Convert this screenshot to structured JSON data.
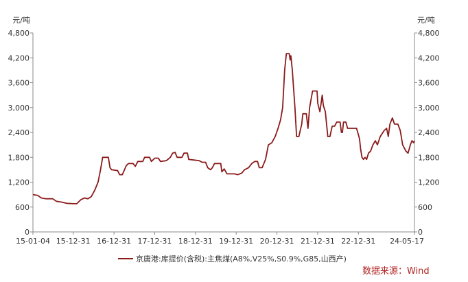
{
  "chart_data": {
    "type": "line",
    "y_unit_left": "元/吨",
    "y_unit_right": "元/吨",
    "ylim": [
      0,
      4800
    ],
    "yticks": [
      "0",
      "600",
      "1,200",
      "1,800",
      "2,400",
      "3,000",
      "3,600",
      "4,200",
      "4,800"
    ],
    "ytick_values": [
      0,
      600,
      1200,
      1800,
      2400,
      3000,
      3600,
      4200,
      4800
    ],
    "xlim": [
      "2015-01-04",
      "2024-05-17"
    ],
    "xticks": [
      "15-01-04",
      "15-12-31",
      "16-12-31",
      "17-12-31",
      "18-12-31",
      "19-12-31",
      "20-12-31",
      "21-12-31",
      "22-12-31",
      "24-05-17"
    ],
    "xtick_dates": [
      "2015-01-04",
      "2015-12-31",
      "2016-12-31",
      "2017-12-31",
      "2018-12-31",
      "2019-12-31",
      "2020-12-31",
      "2021-12-31",
      "2022-12-31",
      "2024-05-17"
    ],
    "grid": false,
    "legend_position": "bottom-center",
    "series": [
      {
        "name": "京唐港:库提价(含税):主焦煤(A8%,V25%,S0.9%,G85,山西产)",
        "color": "#8B1A1A",
        "points": [
          [
            "2015-01-04",
            900
          ],
          [
            "2015-02-15",
            880
          ],
          [
            "2015-03-20",
            820
          ],
          [
            "2015-05-01",
            800
          ],
          [
            "2015-07-01",
            800
          ],
          [
            "2015-08-01",
            740
          ],
          [
            "2015-09-15",
            720
          ],
          [
            "2015-11-01",
            690
          ],
          [
            "2015-12-31",
            680
          ],
          [
            "2016-02-01",
            680
          ],
          [
            "2016-03-10",
            780
          ],
          [
            "2016-04-10",
            820
          ],
          [
            "2016-05-10",
            800
          ],
          [
            "2016-06-10",
            850
          ],
          [
            "2016-07-10",
            1000
          ],
          [
            "2016-08-10",
            1200
          ],
          [
            "2016-09-01",
            1500
          ],
          [
            "2016-09-20",
            1800
          ],
          [
            "2016-11-10",
            1800
          ],
          [
            "2016-11-25",
            1550
          ],
          [
            "2016-12-10",
            1500
          ],
          [
            "2017-02-01",
            1480
          ],
          [
            "2017-02-20",
            1380
          ],
          [
            "2017-03-15",
            1380
          ],
          [
            "2017-04-01",
            1480
          ],
          [
            "2017-04-20",
            1600
          ],
          [
            "2017-05-10",
            1650
          ],
          [
            "2017-06-20",
            1650
          ],
          [
            "2017-07-10",
            1580
          ],
          [
            "2017-08-01",
            1700
          ],
          [
            "2017-09-15",
            1700
          ],
          [
            "2017-10-01",
            1800
          ],
          [
            "2017-11-15",
            1800
          ],
          [
            "2017-12-01",
            1700
          ],
          [
            "2018-01-01",
            1780
          ],
          [
            "2018-02-01",
            1780
          ],
          [
            "2018-02-20",
            1700
          ],
          [
            "2018-04-15",
            1720
          ],
          [
            "2018-05-20",
            1800
          ],
          [
            "2018-06-10",
            1900
          ],
          [
            "2018-07-01",
            1920
          ],
          [
            "2018-07-20",
            1800
          ],
          [
            "2018-09-01",
            1800
          ],
          [
            "2018-09-20",
            1900
          ],
          [
            "2018-10-20",
            1900
          ],
          [
            "2018-11-01",
            1750
          ],
          [
            "2019-02-01",
            1720
          ],
          [
            "2019-03-01",
            1680
          ],
          [
            "2019-04-01",
            1680
          ],
          [
            "2019-04-20",
            1550
          ],
          [
            "2019-05-15",
            1500
          ],
          [
            "2019-06-01",
            1550
          ],
          [
            "2019-06-20",
            1650
          ],
          [
            "2019-08-15",
            1650
          ],
          [
            "2019-08-25",
            1450
          ],
          [
            "2019-09-15",
            1520
          ],
          [
            "2019-10-10",
            1400
          ],
          [
            "2019-12-15",
            1400
          ],
          [
            "2020-01-15",
            1380
          ],
          [
            "2020-02-20",
            1420
          ],
          [
            "2020-03-15",
            1500
          ],
          [
            "2020-04-20",
            1550
          ],
          [
            "2020-05-20",
            1650
          ],
          [
            "2020-06-15",
            1700
          ],
          [
            "2020-07-10",
            1700
          ],
          [
            "2020-07-25",
            1550
          ],
          [
            "2020-08-20",
            1550
          ],
          [
            "2020-09-20",
            1750
          ],
          [
            "2020-10-15",
            2100
          ],
          [
            "2020-11-15",
            2150
          ],
          [
            "2020-12-15",
            2300
          ],
          [
            "2021-01-10",
            2500
          ],
          [
            "2021-02-01",
            2700
          ],
          [
            "2021-02-20",
            3000
          ],
          [
            "2021-03-10",
            3900
          ],
          [
            "2021-03-25",
            4300
          ],
          [
            "2021-04-20",
            4300
          ],
          [
            "2021-04-28",
            4150
          ],
          [
            "2021-05-05",
            4250
          ],
          [
            "2021-05-18",
            3900
          ],
          [
            "2021-06-10",
            3000
          ],
          [
            "2021-06-25",
            2300
          ],
          [
            "2021-07-15",
            2300
          ],
          [
            "2021-08-10",
            2600
          ],
          [
            "2021-08-20",
            2850
          ],
          [
            "2021-09-20",
            2850
          ],
          [
            "2021-10-05",
            2500
          ],
          [
            "2021-10-20",
            3000
          ],
          [
            "2021-11-15",
            3400
          ],
          [
            "2021-12-25",
            3400
          ],
          [
            "2022-01-01",
            3100
          ],
          [
            "2022-01-20",
            2900
          ],
          [
            "2022-02-10",
            3300
          ],
          [
            "2022-02-20",
            3050
          ],
          [
            "2022-03-10",
            2900
          ],
          [
            "2022-04-01",
            2300
          ],
          [
            "2022-04-20",
            2300
          ],
          [
            "2022-05-10",
            2550
          ],
          [
            "2022-06-01",
            2550
          ],
          [
            "2022-06-20",
            2650
          ],
          [
            "2022-07-20",
            2650
          ],
          [
            "2022-08-01",
            2400
          ],
          [
            "2022-08-10",
            2400
          ],
          [
            "2022-08-20",
            2650
          ],
          [
            "2022-09-10",
            2650
          ],
          [
            "2022-09-25",
            2500
          ],
          [
            "2022-11-15",
            2500
          ],
          [
            "2022-12-15",
            2500
          ],
          [
            "2023-01-10",
            2250
          ],
          [
            "2023-01-20",
            2000
          ],
          [
            "2023-02-01",
            1800
          ],
          [
            "2023-02-15",
            1750
          ],
          [
            "2023-03-01",
            1800
          ],
          [
            "2023-03-15",
            1750
          ],
          [
            "2023-04-01",
            1900
          ],
          [
            "2023-04-20",
            1950
          ],
          [
            "2023-05-10",
            2100
          ],
          [
            "2023-06-01",
            2200
          ],
          [
            "2023-06-20",
            2100
          ],
          [
            "2023-07-15",
            2300
          ],
          [
            "2023-08-20",
            2450
          ],
          [
            "2023-09-10",
            2500
          ],
          [
            "2023-09-25",
            2300
          ],
          [
            "2023-10-10",
            2600
          ],
          [
            "2023-11-01",
            2750
          ],
          [
            "2023-11-20",
            2600
          ],
          [
            "2023-12-20",
            2600
          ],
          [
            "2024-01-10",
            2450
          ],
          [
            "2024-02-01",
            2100
          ],
          [
            "2024-03-01",
            1950
          ],
          [
            "2024-03-20",
            1900
          ],
          [
            "2024-04-10",
            2100
          ],
          [
            "2024-04-25",
            2200
          ],
          [
            "2024-05-10",
            2150
          ],
          [
            "2024-05-17",
            2200
          ]
        ]
      }
    ],
    "source_label": "数据来源：Wind",
    "source_color": "#B22222"
  }
}
